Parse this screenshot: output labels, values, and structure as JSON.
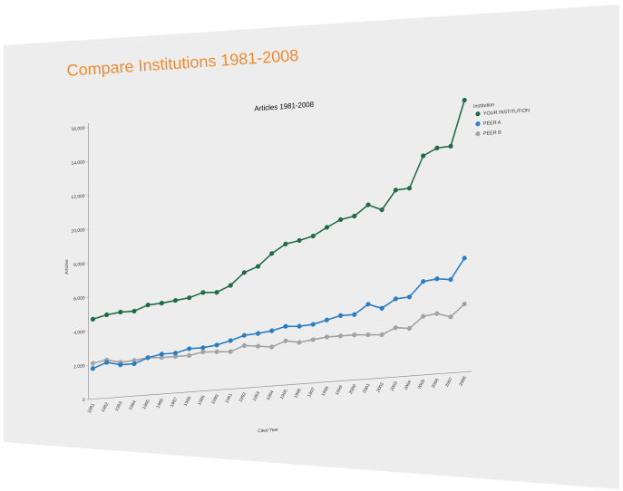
{
  "page": {
    "title": "Compare Institutions 1981-2008",
    "title_color": "#F08A2E",
    "background_color": "#EDEDED"
  },
  "chart_data": {
    "type": "line",
    "title": "Articles 1981-2008",
    "xlabel": "Cited Year",
    "ylabel": "Articles",
    "ylim": [
      0,
      16000
    ],
    "yticks": [
      "0",
      "2,000",
      "4,000",
      "6,000",
      "8,000",
      "10,000",
      "12,000",
      "14,000",
      "16,000"
    ],
    "categories": [
      "1981",
      "1982",
      "1983",
      "1984",
      "1985",
      "1986",
      "1987",
      "1988",
      "1989",
      "1990",
      "1991",
      "1992",
      "1993",
      "1994",
      "1995",
      "1996",
      "1997",
      "1998",
      "1999",
      "2000",
      "2001",
      "2002",
      "2003",
      "2004",
      "2005",
      "2006",
      "2007",
      "2008"
    ],
    "legend": {
      "title": "Institution",
      "position": "top-right"
    },
    "grid": false,
    "series": [
      {
        "name": "YOUR INSTITUTION",
        "color": "#1E6B45",
        "values": [
          4700,
          4900,
          5000,
          5000,
          5300,
          5350,
          5450,
          5550,
          5800,
          5750,
          6100,
          6800,
          7100,
          7800,
          8300,
          8450,
          8650,
          9100,
          9500,
          9650,
          10250,
          9900,
          11000,
          11050,
          12900,
          13300,
          13350,
          16000
        ]
      },
      {
        "name": "PEER A",
        "color": "#2A7DC2",
        "values": [
          1800,
          2100,
          1900,
          1900,
          2200,
          2350,
          2350,
          2550,
          2550,
          2650,
          2850,
          3100,
          3150,
          3250,
          3450,
          3400,
          3450,
          3650,
          3850,
          3850,
          4400,
          4100,
          4600,
          4650,
          5500,
          5600,
          5500,
          6700
        ]
      },
      {
        "name": "PEER B",
        "color": "#A3A3A3",
        "values": [
          2100,
          2250,
          2050,
          2100,
          2200,
          2150,
          2150,
          2150,
          2300,
          2250,
          2200,
          2500,
          2400,
          2300,
          2600,
          2450,
          2550,
          2650,
          2650,
          2650,
          2600,
          2550,
          2900,
          2800,
          3450,
          3550,
          3300,
          4000
        ]
      }
    ]
  }
}
